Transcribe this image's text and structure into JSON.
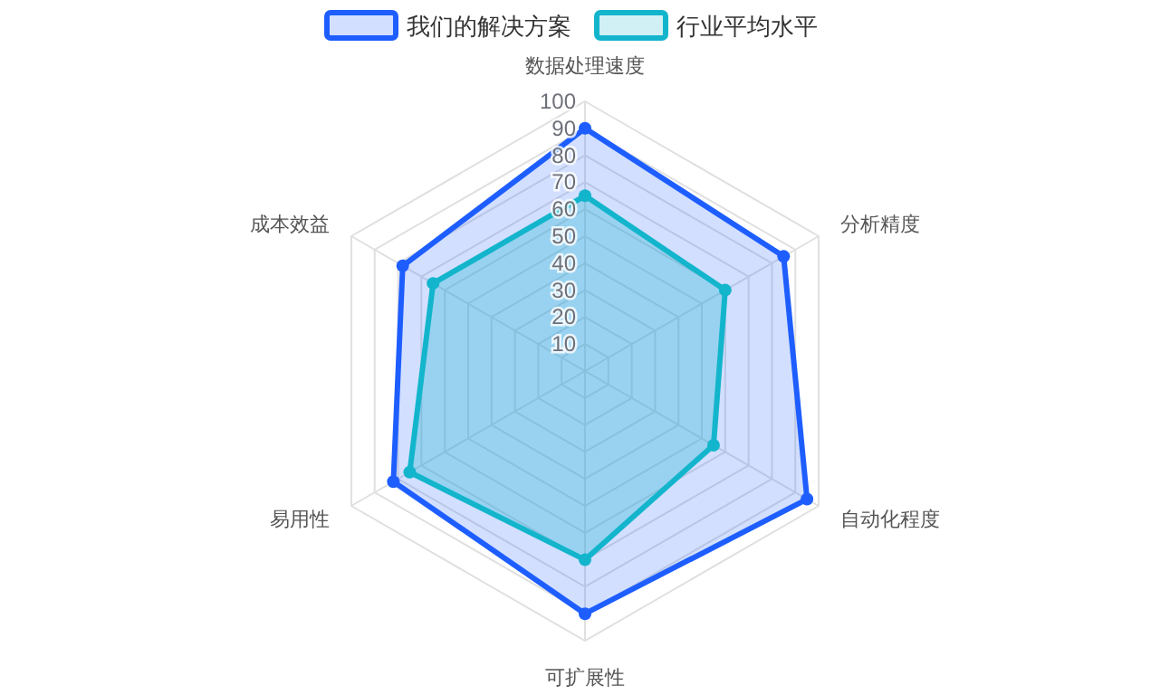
{
  "chart_data": {
    "type": "radar",
    "categories": [
      "数据处理速度",
      "分析精度",
      "自动化程度",
      "可扩展性",
      "易用性",
      "成本效益"
    ],
    "series": [
      {
        "name": "我们的解决方案",
        "color": "#1e5eff",
        "values": [
          90,
          85,
          95,
          90,
          82,
          78
        ]
      },
      {
        "name": "行业平均水平",
        "color": "#13b5cc",
        "values": [
          65,
          60,
          55,
          70,
          75,
          65
        ]
      }
    ],
    "ylim": [
      0,
      100
    ],
    "yticks": [
      10,
      20,
      30,
      40,
      50,
      60,
      70,
      80,
      90,
      100
    ],
    "legend": "top",
    "marker": "circle",
    "line_style": "solid"
  }
}
